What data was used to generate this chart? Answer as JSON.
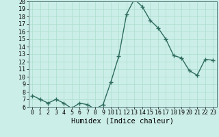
{
  "x": [
    0,
    1,
    2,
    3,
    4,
    5,
    6,
    7,
    8,
    9,
    10,
    11,
    12,
    13,
    14,
    15,
    16,
    17,
    18,
    19,
    20,
    21,
    22,
    23
  ],
  "y": [
    7.5,
    7.0,
    6.5,
    7.0,
    6.5,
    5.8,
    6.5,
    6.3,
    5.7,
    6.3,
    9.3,
    12.7,
    18.3,
    20.3,
    19.3,
    17.5,
    16.5,
    15.0,
    12.8,
    12.5,
    10.8,
    10.2,
    12.3,
    12.2
  ],
  "line_color": "#2d6b5e",
  "bg_color": "#cceee8",
  "grid_color": "#aaddcc",
  "xlabel": "Humidex (Indice chaleur)",
  "ylim": [
    6,
    20
  ],
  "xlim": [
    -0.5,
    23.5
  ],
  "yticks": [
    6,
    7,
    8,
    9,
    10,
    11,
    12,
    13,
    14,
    15,
    16,
    17,
    18,
    19,
    20
  ],
  "xticks": [
    0,
    1,
    2,
    3,
    4,
    5,
    6,
    7,
    8,
    9,
    10,
    11,
    12,
    13,
    14,
    15,
    16,
    17,
    18,
    19,
    20,
    21,
    22,
    23
  ],
  "marker": "+",
  "linewidth": 1.0,
  "markersize": 4,
  "xlabel_fontsize": 7.5,
  "tick_fontsize": 6
}
